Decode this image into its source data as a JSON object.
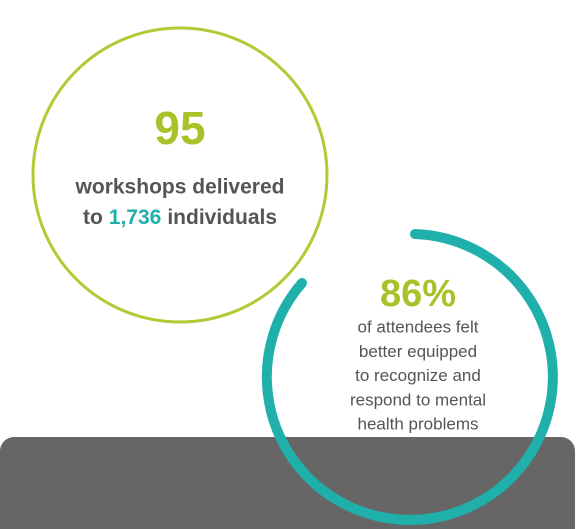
{
  "stat1": {
    "value": "95",
    "line1": "workshops delivered",
    "line2_prefix": "to",
    "line2_highlight": "1,736",
    "line2_suffix": "individuals"
  },
  "stat2": {
    "value": "86%",
    "lines": [
      "of attendees felt",
      "better equipped",
      "to recognize and",
      "respond to mental",
      "health problems"
    ]
  }
}
